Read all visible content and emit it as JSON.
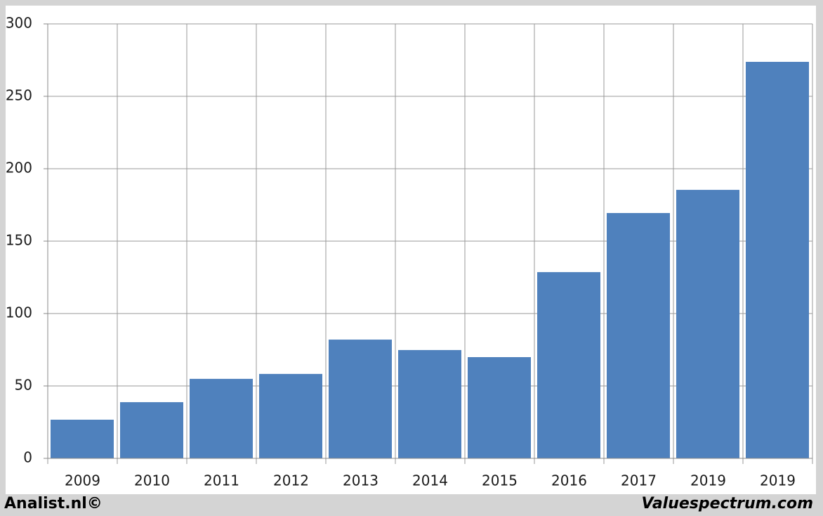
{
  "chart_data": {
    "type": "bar",
    "categories": [
      "2009",
      "2010",
      "2011",
      "2012",
      "2013",
      "2014",
      "2015",
      "2016",
      "2017",
      "2019",
      "2019"
    ],
    "values": [
      26.7,
      38.8,
      54.9,
      58.3,
      82,
      74.8,
      69.9,
      128.6,
      169.4,
      185.4,
      273.8
    ],
    "color": "#4f81bd",
    "ylim": [
      0,
      300
    ],
    "yticks": [
      0,
      50,
      100,
      150,
      200,
      250,
      300
    ],
    "grid": true
  },
  "footer": {
    "left": "Analist.nl©",
    "right": "Valuespectrum.com"
  }
}
